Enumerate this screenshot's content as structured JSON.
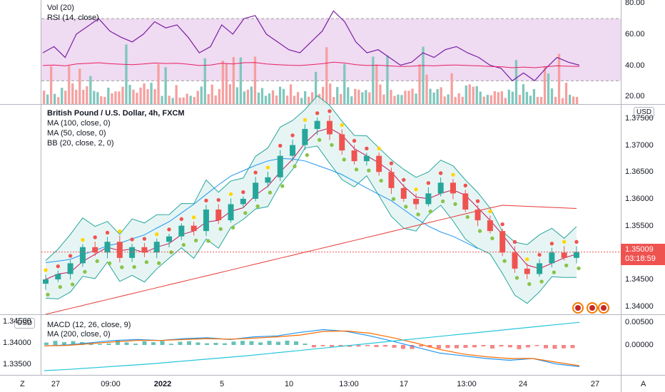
{
  "rsi_pane": {
    "vol_label": "Vol (20)",
    "rsi_label": "RSI (14, close)",
    "axis_ticks": [
      "80.00",
      "60.00",
      "40.00",
      "20.00"
    ],
    "axis_values": [
      80,
      60,
      40,
      20
    ],
    "band_upper": 70,
    "band_lower": 30
  },
  "main_pane": {
    "title": "British Pound / U.S. Dollar, 4h, FXCM",
    "ma100_label": "MA (100, close, 0)",
    "ma50_label": "MA (50, close, 0)",
    "bb_label": "BB (20, close, 2, 0)",
    "currency_button": "USD",
    "axis_ticks": [
      "1.37500",
      "1.37000",
      "1.36500",
      "1.36000",
      "1.35500",
      "1.34500",
      "1.34000"
    ],
    "axis_values": [
      1.375,
      1.37,
      1.365,
      1.36,
      1.355,
      1.345,
      1.34
    ],
    "last_price": "1.35009",
    "countdown": "03:18:59"
  },
  "macd_pane": {
    "macd_label": "MACD (12, 26, close, 9)",
    "ma200_label": "MA (200, close, 0)",
    "currency_button": "USD",
    "left_axis_ticks": [
      "1.34500",
      "1.34000",
      "1.33500"
    ],
    "left_axis_values": [
      1.345,
      1.34,
      1.335
    ],
    "right_axis_ticks": [
      "0.00500",
      "0.00000"
    ],
    "right_axis_values": [
      0.005,
      0
    ]
  },
  "time_axis": {
    "labels": [
      {
        "text": "27",
        "bold": false
      },
      {
        "text": "09:00",
        "bold": false
      },
      {
        "text": "2022",
        "bold": true
      },
      {
        "text": "5",
        "bold": false
      },
      {
        "text": "10",
        "bold": false
      },
      {
        "text": "13:00",
        "bold": false
      },
      {
        "text": "17",
        "bold": false
      },
      {
        "text": "13:00",
        "bold": false
      },
      {
        "text": "24",
        "bold": false
      },
      {
        "text": "27",
        "bold": false
      }
    ],
    "left_corner": "Z",
    "right_corner": "A"
  },
  "colors": {
    "up": "#26a69a",
    "down": "#ef5350",
    "up_volume": "#7fc7bd",
    "down_volume": "#f5a0a0",
    "rsi_line": "#7b1fa2",
    "rsi_ma": "#e91e63",
    "rsi_band": "#e1bee7",
    "bb_fill": "#e0f2f1",
    "bb_line": "#26a69a",
    "ma_red": "#c2185b",
    "ma_blue": "#2196f3",
    "ma_red_main": "#e53935",
    "macd_line": "#2196f3",
    "signal_line": "#ff6d00",
    "ma200_line": "#26c6da",
    "sar_red": "#ef5350",
    "sar_yellow": "#ffd600",
    "sar_green": "#8bc34a"
  },
  "chart_data": [
    {
      "type": "line",
      "pane": "volume-rsi",
      "series": [
        {
          "name": "RSI (14, close)",
          "values": [
            48,
            52,
            45,
            60,
            65,
            70,
            62,
            58,
            55,
            60,
            68,
            64,
            66,
            58,
            48,
            52,
            66,
            60,
            70,
            72,
            60,
            55,
            50,
            48,
            55,
            62,
            75,
            68,
            55,
            48,
            50,
            45,
            40,
            42,
            48,
            45,
            50,
            52,
            48,
            45,
            40,
            38,
            30,
            35,
            30,
            38,
            45,
            42,
            40
          ]
        }
      ],
      "ylim": [
        15,
        82
      ]
    },
    {
      "type": "candlestick",
      "pane": "price",
      "series": [
        {
          "name": "GBP/USD",
          "values": [
            1.345,
            1.346,
            1.348,
            1.351,
            1.35,
            1.352,
            1.349,
            1.351,
            1.35,
            1.352,
            1.353,
            1.355,
            1.354,
            1.358,
            1.356,
            1.359,
            1.36,
            1.363,
            1.364,
            1.368,
            1.37,
            1.373,
            1.3745,
            1.372,
            1.369,
            1.367,
            1.368,
            1.365,
            1.362,
            1.36,
            1.359,
            1.361,
            1.363,
            1.361,
            1.358,
            1.356,
            1.354,
            1.35,
            1.347,
            1.346,
            1.348,
            1.35,
            1.349,
            1.3501
          ]
        }
      ],
      "ylim": [
        1.339,
        1.377
      ]
    },
    {
      "type": "line",
      "pane": "macd",
      "series": [
        {
          "name": "MACD",
          "values": [
            -0.0002,
            0.0,
            0.0005,
            0.001,
            0.0012,
            0.001,
            0.0014,
            0.0016,
            0.0012,
            0.0018,
            0.002,
            0.0028,
            0.0034,
            0.003,
            0.002,
            0.0008,
            -0.0005,
            -0.0018,
            -0.0024,
            -0.003,
            -0.0034,
            -0.003,
            -0.0042,
            -0.0048
          ]
        },
        {
          "name": "Signal",
          "values": [
            -0.0002,
            -0.0001,
            0.0003,
            0.0007,
            0.001,
            0.001,
            0.0012,
            0.0014,
            0.0013,
            0.0015,
            0.0018,
            0.0022,
            0.003,
            0.0031,
            0.0026,
            0.0016,
            0.0004,
            -0.001,
            -0.002,
            -0.0026,
            -0.003,
            -0.003,
            -0.0038,
            -0.0046
          ]
        },
        {
          "name": "MA (200, close, 0)",
          "values": [
            1.3335,
            1.3338,
            1.3342,
            1.3346,
            1.335,
            1.3355,
            1.336,
            1.3365,
            1.337,
            1.3376,
            1.3382,
            1.3388,
            1.3394,
            1.34,
            1.3406,
            1.3412,
            1.3418,
            1.3424,
            1.343,
            1.3436,
            1.3442,
            1.3448
          ]
        }
      ],
      "ylim": [
        -0.006,
        0.006
      ]
    }
  ]
}
